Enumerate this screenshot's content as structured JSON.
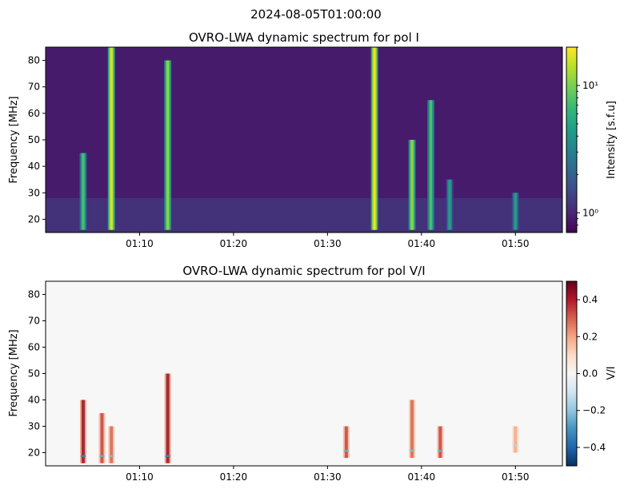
{
  "suptitle": "2024-08-05T01:00:00",
  "colors": {
    "viridis": [
      "#440154",
      "#482878",
      "#3e4989",
      "#31688e",
      "#26828e",
      "#1f9e89",
      "#35b779",
      "#6ece58",
      "#b5de2b",
      "#fde725"
    ],
    "rdbu_r": [
      "#053061",
      "#2166ac",
      "#4393c3",
      "#92c5de",
      "#d1e5f0",
      "#f7f7f7",
      "#fddbc7",
      "#f4a582",
      "#d6604d",
      "#b2182b",
      "#67001f"
    ]
  },
  "chart_data": [
    {
      "type": "heatmap",
      "title": "OVRO-LWA dynamic spectrum for pol I",
      "xlabel": "",
      "ylabel": "Frequency [MHz]",
      "xlim": [
        "01:00:00",
        "01:55:00"
      ],
      "ylim": [
        15,
        85
      ],
      "x_ticks": [
        "01:10",
        "01:20",
        "01:30",
        "01:40",
        "01:50"
      ],
      "y_ticks": [
        20,
        30,
        40,
        50,
        60,
        70,
        80
      ],
      "colorbar": {
        "label": "Intensity [s.f.u]",
        "scale": "log",
        "range": [
          0.7,
          20
        ],
        "tick_labels": [
          "10⁰",
          "10¹"
        ],
        "tick_values": [
          1,
          10
        ]
      },
      "background_level": 0.9,
      "bursts": [
        {
          "time": "01:04",
          "f_low": 16,
          "f_high": 45,
          "peak": 8
        },
        {
          "time": "01:07",
          "f_low": 16,
          "f_high": 85,
          "peak": 18
        },
        {
          "time": "01:13",
          "f_low": 16,
          "f_high": 80,
          "peak": 12
        },
        {
          "time": "01:35",
          "f_low": 16,
          "f_high": 85,
          "peak": 20
        },
        {
          "time": "01:39",
          "f_low": 16,
          "f_high": 50,
          "peak": 12
        },
        {
          "time": "01:41",
          "f_low": 16,
          "f_high": 65,
          "peak": 8
        },
        {
          "time": "01:43",
          "f_low": 16,
          "f_high": 35,
          "peak": 5
        },
        {
          "time": "01:50",
          "f_low": 16,
          "f_high": 30,
          "peak": 5
        }
      ]
    },
    {
      "type": "heatmap",
      "title": "OVRO-LWA dynamic spectrum for pol V/I",
      "xlabel": "",
      "ylabel": "Frequency [MHz]",
      "xlim": [
        "01:00:00",
        "01:55:00"
      ],
      "ylim": [
        15,
        85
      ],
      "x_ticks": [
        "01:10",
        "01:20",
        "01:30",
        "01:40",
        "01:50"
      ],
      "y_ticks": [
        20,
        30,
        40,
        50,
        60,
        70,
        80
      ],
      "colorbar": {
        "label": "V/I",
        "scale": "linear",
        "range": [
          -0.5,
          0.5
        ],
        "tick_values": [
          -0.4,
          -0.2,
          0.0,
          0.2,
          0.4
        ],
        "tick_labels": [
          "−0.4",
          "−0.2",
          "0.0",
          "0.2",
          "0.4"
        ]
      },
      "bursts": [
        {
          "time": "01:04",
          "f_low": 16,
          "f_high": 40,
          "peak": 0.45
        },
        {
          "time": "01:06",
          "f_low": 16,
          "f_high": 35,
          "peak": 0.35
        },
        {
          "time": "01:07",
          "f_low": 16,
          "f_high": 30,
          "peak": 0.3
        },
        {
          "time": "01:13",
          "f_low": 16,
          "f_high": 50,
          "peak": 0.45
        },
        {
          "time": "01:32",
          "f_low": 18,
          "f_high": 30,
          "peak": 0.35
        },
        {
          "time": "01:39",
          "f_low": 18,
          "f_high": 40,
          "peak": 0.3
        },
        {
          "time": "01:42",
          "f_low": 18,
          "f_high": 30,
          "peak": 0.35
        },
        {
          "time": "01:50",
          "f_low": 20,
          "f_high": 30,
          "peak": 0.2
        }
      ]
    }
  ]
}
